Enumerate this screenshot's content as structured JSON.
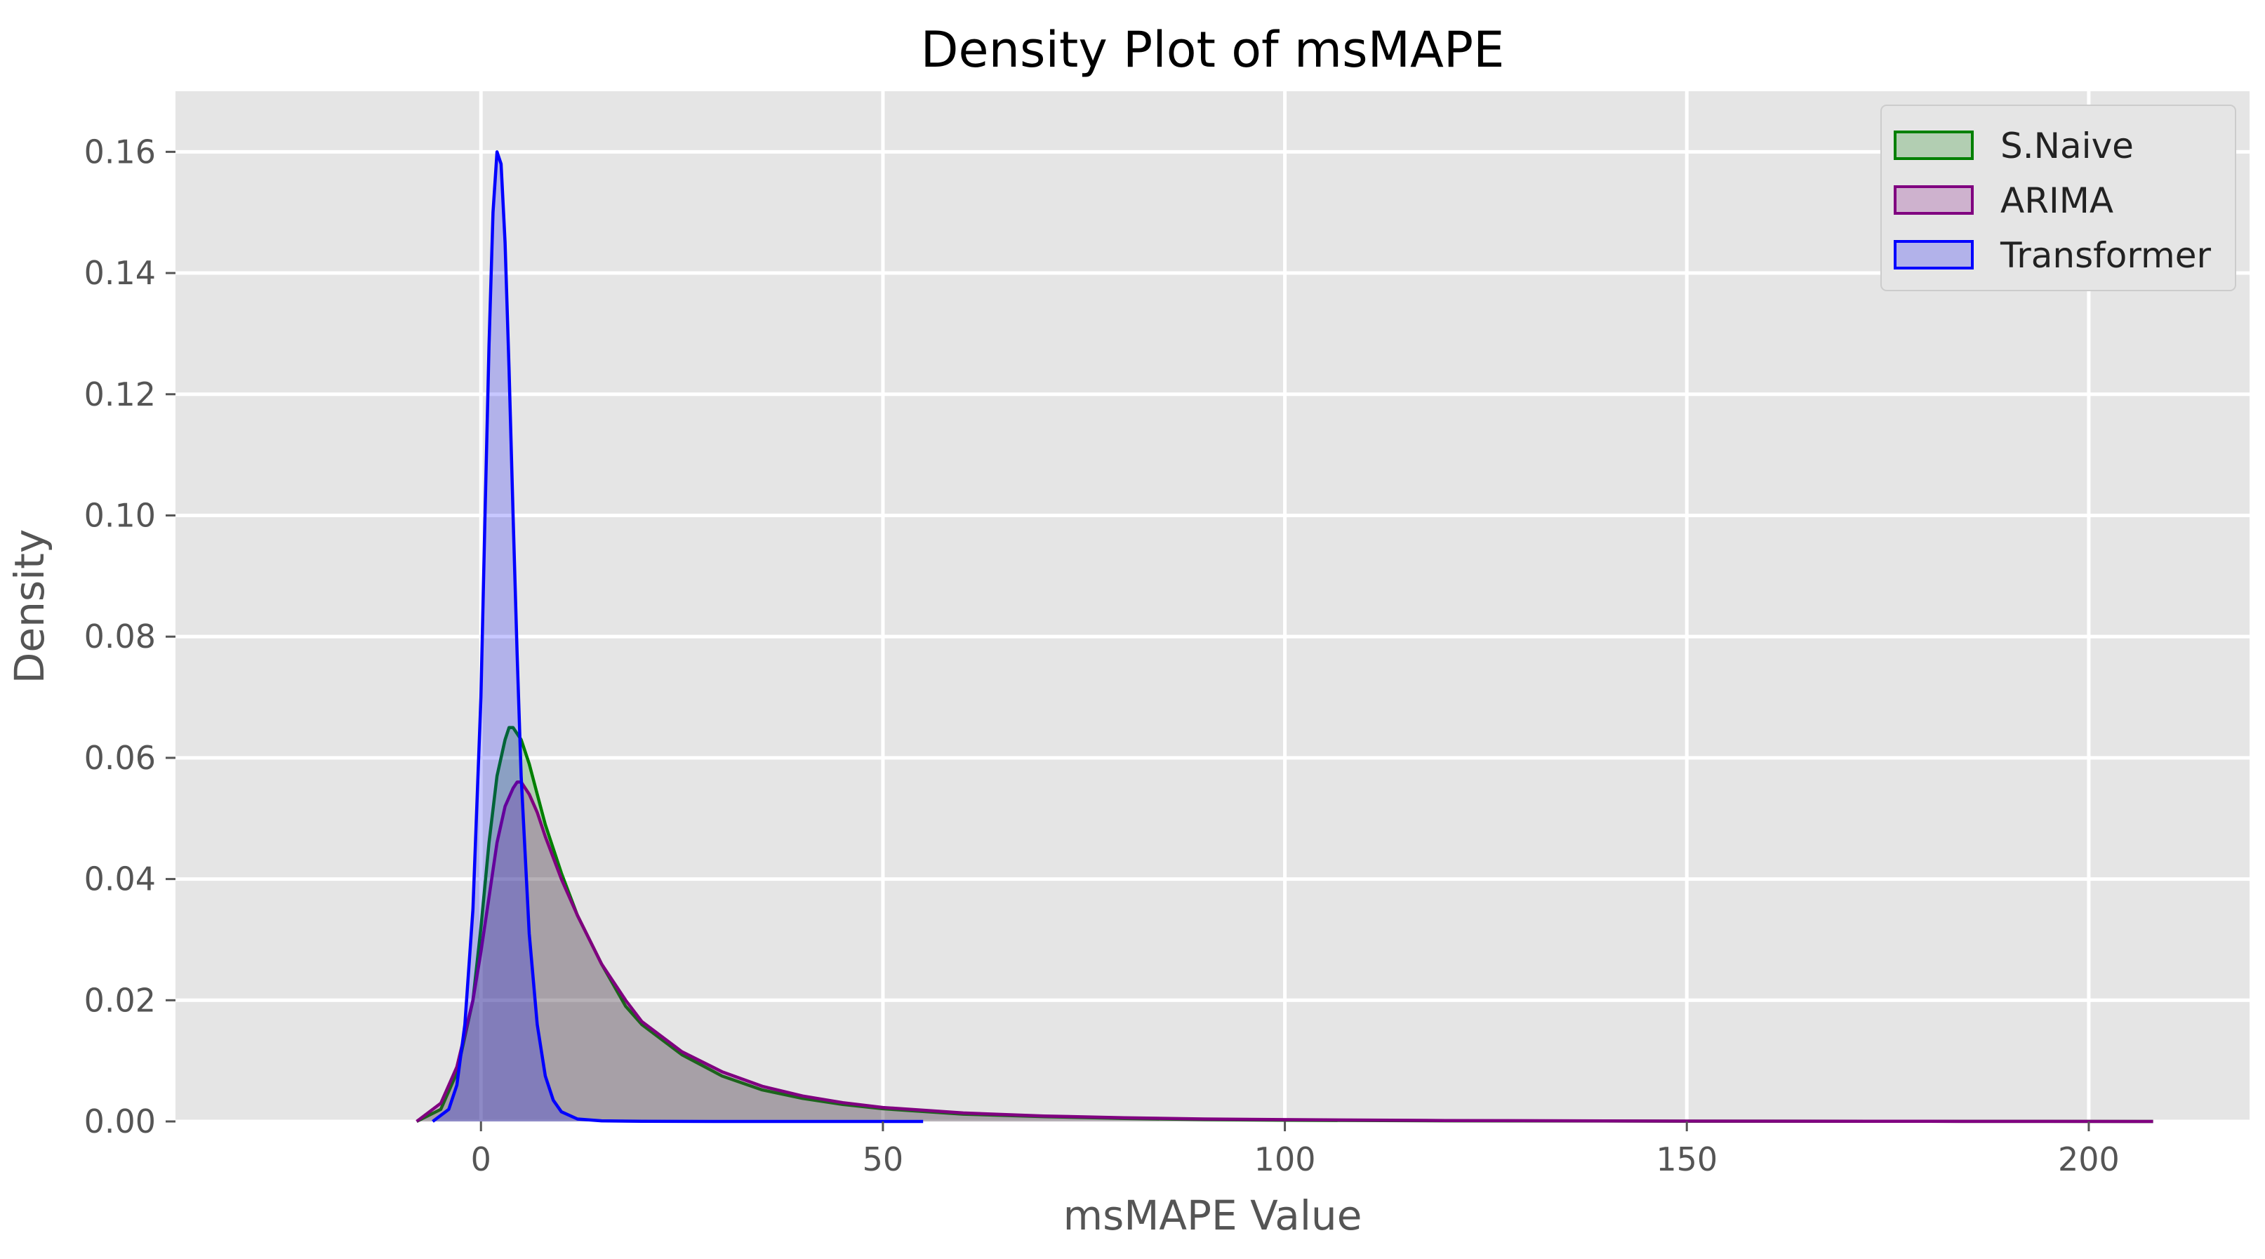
{
  "chart_data": {
    "type": "area",
    "title": "Density Plot of msMAPE",
    "xlabel": "msMAPE Value",
    "ylabel": "Density",
    "xlim": [
      -38,
      220
    ],
    "ylim": [
      0,
      0.17
    ],
    "xticks": [
      0,
      50,
      100,
      150,
      200
    ],
    "xtick_labels": [
      "0",
      "50",
      "100",
      "150",
      "200"
    ],
    "yticks": [
      0,
      0.02,
      0.04,
      0.06,
      0.08,
      0.1,
      0.12,
      0.14,
      0.16
    ],
    "ytick_labels": [
      "0.00",
      "0.02",
      "0.04",
      "0.06",
      "0.08",
      "0.10",
      "0.12",
      "0.14",
      "0.16"
    ],
    "grid": true,
    "legend_position": "top-right",
    "series": [
      {
        "name": "S.Naive",
        "color": "#008000",
        "x": [
          -8,
          -5,
          -3,
          -1,
          0,
          1,
          2,
          3,
          3.5,
          4,
          5,
          6,
          7,
          8,
          10,
          12,
          15,
          18,
          20,
          25,
          30,
          35,
          40,
          45,
          50,
          60,
          70,
          80,
          90,
          100,
          120,
          150,
          180,
          208
        ],
        "values": [
          0,
          0.002,
          0.008,
          0.02,
          0.032,
          0.046,
          0.057,
          0.063,
          0.065,
          0.065,
          0.063,
          0.059,
          0.054,
          0.049,
          0.041,
          0.034,
          0.026,
          0.019,
          0.016,
          0.011,
          0.0075,
          0.0052,
          0.0038,
          0.0028,
          0.0021,
          0.0012,
          0.0008,
          0.0005,
          0.0003,
          0.0002,
          0.0001,
          5e-05,
          2e-05,
          0
        ]
      },
      {
        "name": "ARIMA",
        "color": "#800080",
        "x": [
          -8,
          -5,
          -3,
          -1,
          0,
          1,
          2,
          3,
          4,
          4.5,
          5,
          6,
          7,
          8,
          10,
          12,
          15,
          18,
          20,
          25,
          30,
          35,
          40,
          45,
          50,
          60,
          70,
          80,
          90,
          100,
          120,
          150,
          180,
          208
        ],
        "values": [
          0,
          0.003,
          0.009,
          0.02,
          0.028,
          0.037,
          0.046,
          0.052,
          0.055,
          0.056,
          0.056,
          0.054,
          0.051,
          0.047,
          0.04,
          0.034,
          0.026,
          0.02,
          0.0165,
          0.0115,
          0.0082,
          0.0058,
          0.0042,
          0.0031,
          0.0023,
          0.0014,
          0.0009,
          0.0006,
          0.0004,
          0.0003,
          0.00015,
          6e-05,
          2e-05,
          0
        ]
      },
      {
        "name": "Transformer",
        "color": "#0000ff",
        "x": [
          -6,
          -4,
          -3,
          -2,
          -1,
          0,
          0.5,
          1,
          1.5,
          2,
          2.5,
          3,
          3.5,
          4,
          4.5,
          5,
          6,
          7,
          8,
          9,
          10,
          12,
          15,
          20,
          30,
          40,
          50,
          55
        ],
        "values": [
          0,
          0.002,
          0.006,
          0.016,
          0.035,
          0.07,
          0.1,
          0.128,
          0.15,
          0.16,
          0.158,
          0.145,
          0.124,
          0.1,
          0.077,
          0.057,
          0.031,
          0.016,
          0.0075,
          0.0035,
          0.0016,
          0.0004,
          0.0001,
          2e-05,
          0,
          0,
          0,
          0
        ]
      }
    ]
  }
}
